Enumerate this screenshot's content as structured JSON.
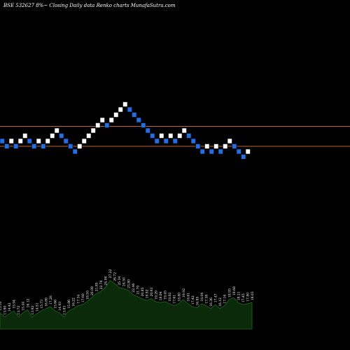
{
  "header": {
    "text": "BSE 532627 8%~   Closing Daily data  Renko  charts MunafaSutra.com"
  },
  "chart_data": {
    "type": "renko",
    "title": "BSE 532627 8%~   Closing Daily data  Renko  charts MunafaSutra.com",
    "bricks": [
      {
        "level": 6,
        "color": "blue"
      },
      {
        "level": 5,
        "color": "blue"
      },
      {
        "level": 6,
        "color": "white"
      },
      {
        "level": 5,
        "color": "blue"
      },
      {
        "level": 6,
        "color": "white"
      },
      {
        "level": 7,
        "color": "white"
      },
      {
        "level": 6,
        "color": "blue"
      },
      {
        "level": 5,
        "color": "blue"
      },
      {
        "level": 6,
        "color": "white"
      },
      {
        "level": 5,
        "color": "blue"
      },
      {
        "level": 6,
        "color": "white"
      },
      {
        "level": 7,
        "color": "white"
      },
      {
        "level": 8,
        "color": "white"
      },
      {
        "level": 7,
        "color": "blue"
      },
      {
        "level": 6,
        "color": "blue"
      },
      {
        "level": 5,
        "color": "blue"
      },
      {
        "level": 4,
        "color": "blue"
      },
      {
        "level": 5,
        "color": "white"
      },
      {
        "level": 6,
        "color": "white"
      },
      {
        "level": 7,
        "color": "white"
      },
      {
        "level": 8,
        "color": "white"
      },
      {
        "level": 9,
        "color": "white"
      },
      {
        "level": 10,
        "color": "white"
      },
      {
        "level": 9,
        "color": "blue"
      },
      {
        "level": 10,
        "color": "white"
      },
      {
        "level": 11,
        "color": "white"
      },
      {
        "level": 12,
        "color": "white"
      },
      {
        "level": 13,
        "color": "white"
      },
      {
        "level": 12,
        "color": "blue"
      },
      {
        "level": 11,
        "color": "blue"
      },
      {
        "level": 10,
        "color": "blue"
      },
      {
        "level": 9,
        "color": "blue"
      },
      {
        "level": 8,
        "color": "blue"
      },
      {
        "level": 7,
        "color": "blue"
      },
      {
        "level": 6,
        "color": "blue"
      },
      {
        "level": 7,
        "color": "white"
      },
      {
        "level": 6,
        "color": "blue"
      },
      {
        "level": 7,
        "color": "white"
      },
      {
        "level": 6,
        "color": "blue"
      },
      {
        "level": 7,
        "color": "white"
      },
      {
        "level": 8,
        "color": "white"
      },
      {
        "level": 7,
        "color": "blue"
      },
      {
        "level": 6,
        "color": "blue"
      },
      {
        "level": 5,
        "color": "blue"
      },
      {
        "level": 4,
        "color": "blue"
      },
      {
        "level": 5,
        "color": "white"
      },
      {
        "level": 4,
        "color": "blue"
      },
      {
        "level": 5,
        "color": "white"
      },
      {
        "level": 4,
        "color": "blue"
      },
      {
        "level": 5,
        "color": "white"
      },
      {
        "level": 6,
        "color": "white"
      },
      {
        "level": 5,
        "color": "blue"
      },
      {
        "level": 4,
        "color": "blue"
      },
      {
        "level": 3,
        "color": "blue"
      },
      {
        "level": 4,
        "color": "white"
      }
    ],
    "reference_lines": [
      {
        "level": 8.8
      },
      {
        "level": 5.0
      }
    ],
    "volume_labels": [
      "15.16",
      "13.80",
      "14.42",
      "15.94",
      "13.72",
      "15.44",
      "16.12",
      "13.92",
      "14.51",
      "15.73",
      "16.80",
      "17.20",
      "15.66",
      "14.93",
      "13.83",
      "15.86",
      "16.22",
      "17.34",
      "17.60",
      "18.55",
      "20.08",
      "21.85",
      "22.74",
      "24.06",
      "27.22",
      "26.72",
      "25.34",
      "24.50",
      "23.80",
      "22.46",
      "21.70",
      "20.85",
      "19.92",
      "20.63",
      "19.29",
      "18.84",
      "19.45",
      "18.82",
      "17.61",
      "18.80",
      "19.92",
      "18.61",
      "17.42",
      "16.85",
      "18.04",
      "17.38",
      "16.36",
      "17.47",
      "16.12",
      "17.16",
      "18.93",
      "19.68",
      "18.21",
      "17.45",
      "17.80",
      "18.03"
    ],
    "volume_values": [
      16,
      12,
      15,
      18,
      12,
      16,
      19,
      12,
      15,
      18,
      20,
      22,
      18,
      16,
      12,
      18,
      20,
      23,
      24,
      27,
      31,
      35,
      37,
      41,
      48,
      45,
      41,
      40,
      38,
      34,
      32,
      30,
      28,
      30,
      27,
      26,
      27,
      25,
      23,
      25,
      29,
      25,
      22,
      21,
      25,
      23,
      20,
      24,
      20,
      23,
      29,
      31,
      26,
      24,
      25,
      26
    ],
    "colors": {
      "background": "#000000",
      "up_brick": "#ffffff",
      "down_brick": "#1e6fe8",
      "reference_line": "#c0652c",
      "volume_fill": "#0a2a0a",
      "volume_stroke": "#1a6a1a"
    },
    "grid": false,
    "legend": "none"
  }
}
